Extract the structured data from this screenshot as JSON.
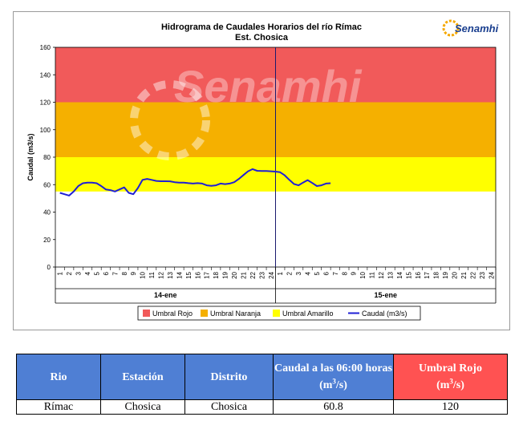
{
  "chart": {
    "title_line1": "Hidrograma de Caudales Horarios del río Rímac",
    "title_line2": "Est. Chosica",
    "logo_text": "Senamhi",
    "watermark_text": "Senamhi",
    "day_labels": [
      "14-ene",
      "15-ene"
    ],
    "hour_labels": [
      "1",
      "2",
      "3",
      "4",
      "5",
      "6",
      "7",
      "8",
      "9",
      "10",
      "11",
      "12",
      "13",
      "14",
      "15",
      "16",
      "17",
      "18",
      "19",
      "20",
      "21",
      "22",
      "23",
      "24"
    ]
  },
  "chart_data": {
    "type": "line",
    "title": "Hidrograma de Caudales Horarios del río Rímac — Est. Chosica",
    "ylabel": "Caudal  (m3/s)",
    "xlabel": "",
    "ylim": [
      0,
      160
    ],
    "yticks": [
      0,
      20,
      40,
      60,
      80,
      100,
      120,
      140,
      160
    ],
    "hours_per_day": 24,
    "days": [
      "14-ene",
      "15-ene"
    ],
    "bands": [
      {
        "name": "Umbral Rojo",
        "from": 120,
        "to": 160,
        "color": "#f15a5a"
      },
      {
        "name": "Umbral Naranja",
        "from": 80,
        "to": 120,
        "color": "#f5b000"
      },
      {
        "name": "Umbral Amarillo",
        "from": 55,
        "to": 80,
        "color": "#ffff00"
      }
    ],
    "series": [
      {
        "name": "Caudal (m3/s)",
        "color": "#1f1fd6",
        "x": [
          0.5,
          1,
          1.5,
          2,
          2.5,
          3,
          3.5,
          4,
          4.5,
          5,
          5.5,
          6,
          6.5,
          7,
          7.5,
          8,
          8.5,
          9,
          9.5,
          10,
          10.5,
          11,
          11.5,
          12,
          12.5,
          13,
          13.5,
          14,
          14.5,
          15,
          15.5,
          16,
          16.5,
          17,
          17.5,
          18,
          18.5,
          19,
          19.5,
          20,
          20.5,
          21,
          21.5,
          22,
          22.5,
          23,
          23.5,
          24,
          24.5,
          25,
          25.5,
          26,
          26.5,
          27,
          27.5,
          28,
          28.5,
          29,
          29.5,
          30
        ],
        "values": [
          54,
          53,
          52,
          55,
          59,
          61,
          61.5,
          61.5,
          61,
          59,
          56.5,
          56,
          55,
          56.5,
          58,
          54,
          53,
          57.5,
          63.5,
          64.2,
          63.5,
          62.7,
          62.5,
          62.5,
          62.4,
          61.8,
          61.5,
          61.5,
          61.1,
          60.8,
          61.1,
          60.8,
          59.5,
          59.1,
          59.5,
          60.8,
          60.4,
          60.8,
          61.8,
          64.2,
          67,
          69.7,
          71.3,
          70.1,
          69.9,
          69.9,
          69.7,
          69.5,
          69,
          66.8,
          63.5,
          60.5,
          59.5,
          61.5,
          63.3,
          61.2,
          59,
          59.5,
          60.8,
          61
        ]
      }
    ],
    "legend": [
      "Umbral Rojo",
      "Umbral Naranja",
      "Umbral Amarillo",
      "Caudal (m3/s)"
    ],
    "legend_position": "bottom",
    "grid": false
  },
  "table": {
    "headers": {
      "rio": "Rio",
      "estacion": "Estación",
      "distrito": "Distrito",
      "caudal_main": "Caudal a las 06:00 horas",
      "caudal_unit": "(m",
      "caudal_sup": "3",
      "caudal_end": "/s)",
      "umbral_main": "Umbral Rojo",
      "umbral_unit": "(m",
      "umbral_sup": "3",
      "umbral_end": "/s)"
    },
    "row": {
      "rio": "Rímac",
      "estacion": "Chosica",
      "distrito": "Chosica",
      "caudal": "60.8",
      "umbral": "120"
    },
    "header_color": "#4f7fd4",
    "umbral_header_color": "#ff5252"
  }
}
